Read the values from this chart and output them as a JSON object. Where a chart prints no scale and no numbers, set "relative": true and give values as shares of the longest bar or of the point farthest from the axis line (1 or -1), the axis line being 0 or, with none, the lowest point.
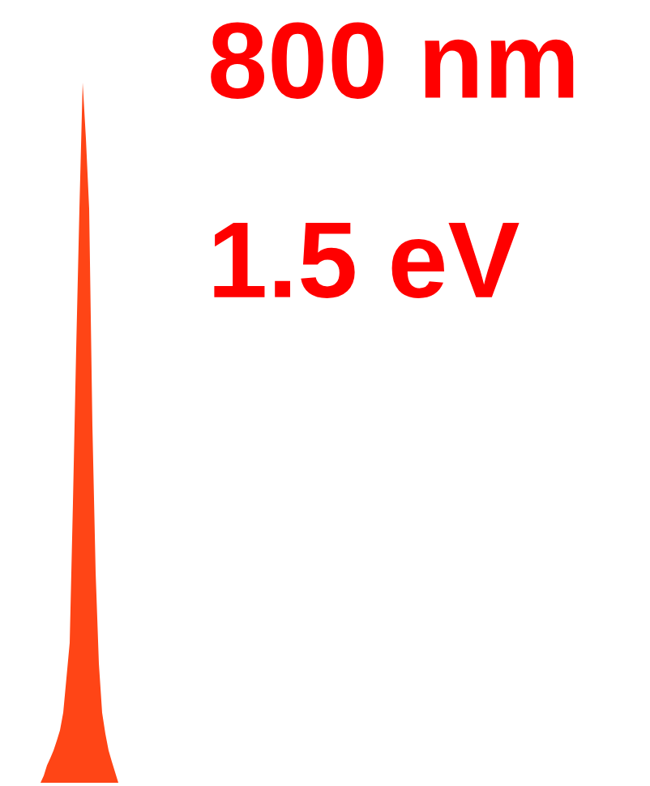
{
  "chart_data": {
    "type": "area",
    "relative": true,
    "title": "800 nm",
    "subtitle": "1.5 eV",
    "categories": [
      null,
      null,
      null,
      null,
      null,
      null,
      null,
      null,
      null,
      null,
      null,
      null,
      null,
      null,
      null,
      null,
      null,
      null,
      null,
      null,
      null,
      null,
      null,
      null,
      null
    ],
    "series": [
      {
        "color": "#ff4516",
        "values": [
          0,
          0.01,
          0.025,
          0.035,
          0.046,
          0.06,
          0.075,
          0.1,
          0.15,
          0.2,
          0.4,
          0.62,
          0.82,
          1.0,
          0.92,
          0.82,
          0.51,
          0.3,
          0.17,
          0.1,
          0.07,
          0.046,
          0.03,
          0.015,
          0
        ]
      }
    ]
  }
}
